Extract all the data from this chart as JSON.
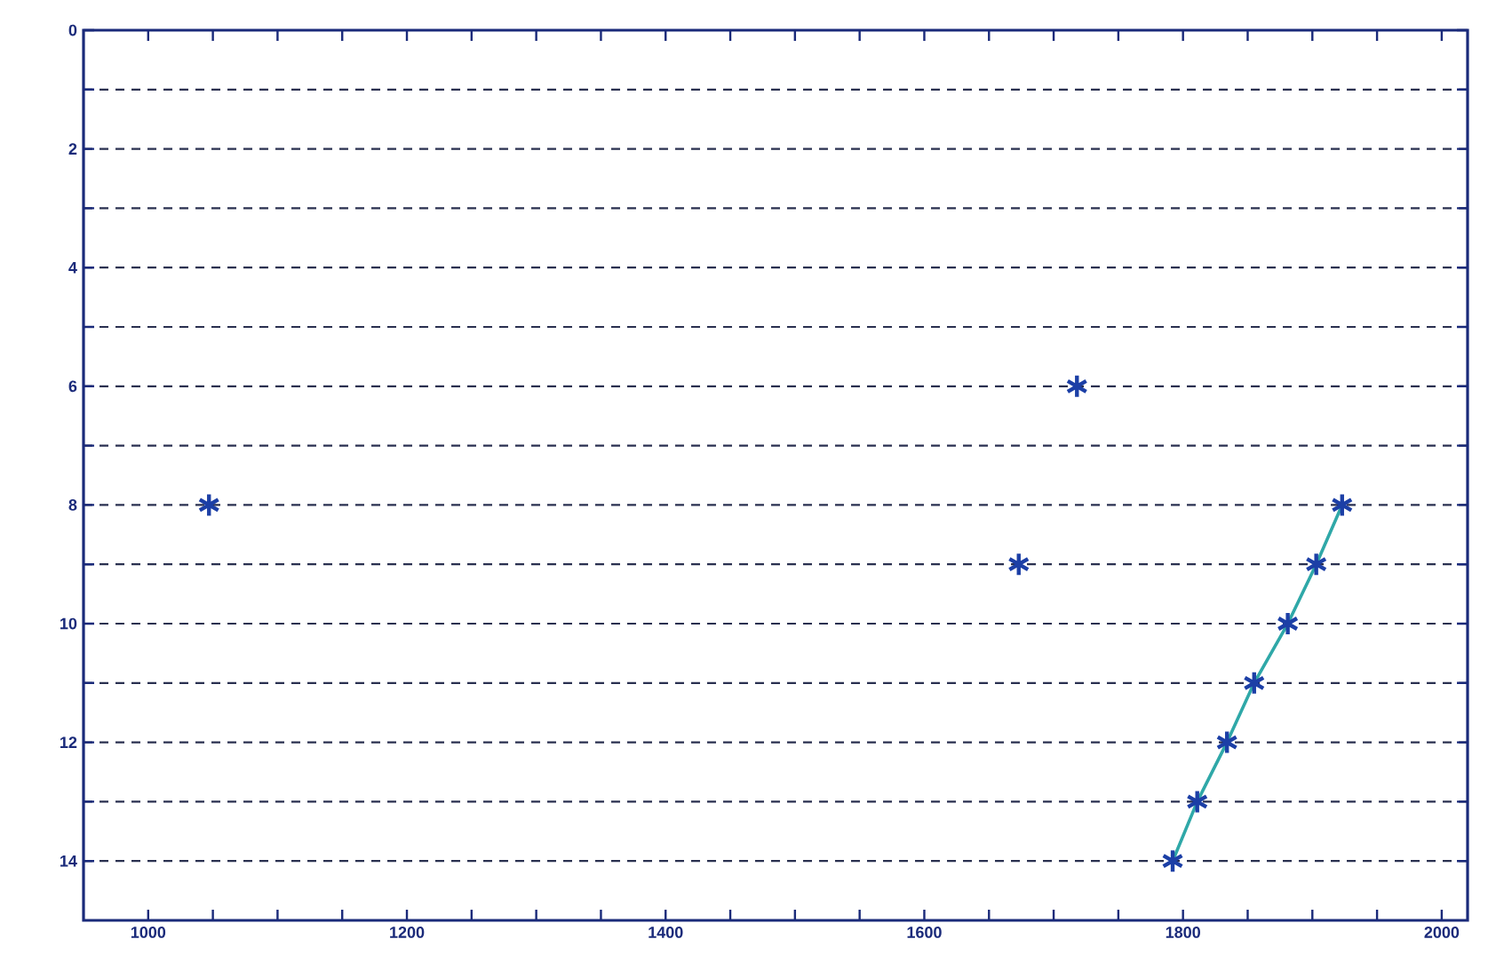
{
  "chart_data": {
    "type": "scatter",
    "xlim": [
      950,
      2020
    ],
    "ylim": [
      15,
      0
    ],
    "xticks": [
      1000,
      {
        "value": 1050,
        "label": null
      },
      1200,
      {
        "value": 1100,
        "label": null
      },
      {
        "value": 1150,
        "label": null
      },
      {
        "value": 1250,
        "label": null
      },
      {
        "value": 1300,
        "label": null
      },
      {
        "value": 1350,
        "label": null
      },
      1400,
      {
        "value": 1450,
        "label": null
      },
      {
        "value": 1500,
        "label": null
      },
      {
        "value": 1550,
        "label": null
      },
      1600,
      {
        "value": 1650,
        "label": null
      },
      {
        "value": 1700,
        "label": null
      },
      {
        "value": 1750,
        "label": null
      },
      1800,
      {
        "value": 1850,
        "label": null
      },
      {
        "value": 1900,
        "label": null
      },
      {
        "value": 1950,
        "label": null
      },
      2000
    ],
    "yticks": [
      0,
      {
        "value": 1,
        "label": null
      },
      2,
      {
        "value": 3,
        "label": null
      },
      4,
      {
        "value": 5,
        "label": null
      },
      6,
      {
        "value": 7,
        "label": null
      },
      8,
      {
        "value": 9,
        "label": null
      },
      10,
      {
        "value": 11,
        "label": null
      },
      12,
      {
        "value": 13,
        "label": null
      },
      14
    ],
    "grid": "y",
    "series": [
      {
        "type": "line",
        "color": "#2fa8a8",
        "marker": "none",
        "x": [
          1923,
          1903,
          1881,
          1855,
          1834,
          1811,
          1792
        ],
        "values": [
          8,
          9,
          10,
          11,
          12,
          13,
          14
        ]
      },
      {
        "color": "#1c3fa6",
        "marker": "cross",
        "x": [
          1047,
          1718,
          1673,
          1923,
          1903,
          1881,
          1855,
          1834,
          1811,
          1792
        ],
        "values": [
          8,
          6,
          9,
          8,
          9,
          10,
          11,
          12,
          13,
          14
        ]
      }
    ]
  }
}
